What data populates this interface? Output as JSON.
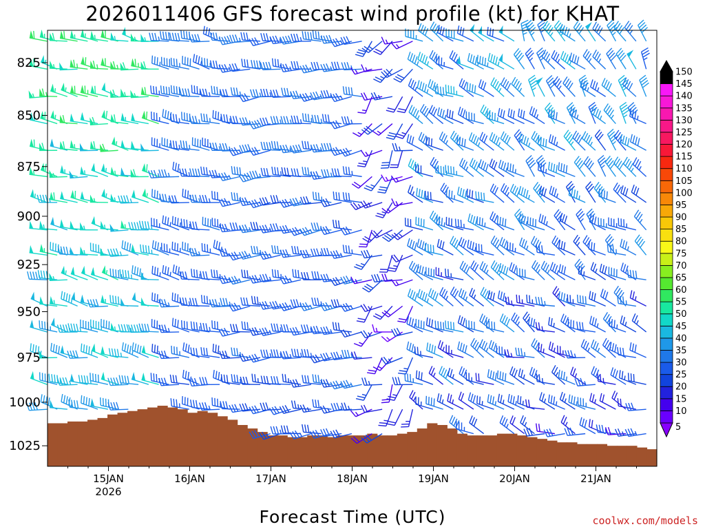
{
  "chart_data": {
    "type": "wind_barb_profile",
    "title": "2026011406 GFS forecast wind profile (kt) for KHAT",
    "xlabel": "Forecast Time (UTC)",
    "ylabel": "",
    "y_axis_labels": [
      "825",
      "850",
      "875",
      "900",
      "925",
      "950",
      "975",
      "1000",
      "1025"
    ],
    "y_range": [
      810,
      1037
    ],
    "x_time_range_hours": [
      0,
      180
    ],
    "x_ticks": [
      {
        "label": "15JAN",
        "hour": 18
      },
      {
        "label": "16JAN",
        "hour": 42
      },
      {
        "label": "17JAN",
        "hour": 66
      },
      {
        "label": "18JAN",
        "hour": 90
      },
      {
        "label": "19JAN",
        "hour": 114
      },
      {
        "label": "20JAN",
        "hour": 138
      },
      {
        "label": "21JAN",
        "hour": 162
      }
    ],
    "x_year_label": "2026",
    "time_step_hours": 3,
    "levels": [
      815,
      828,
      841,
      854,
      867,
      880,
      893,
      907,
      920,
      933,
      947,
      961,
      975,
      990,
      1004,
      1018
    ],
    "colorbar": {
      "labels": [
        "5",
        "10",
        "15",
        "20",
        "25",
        "30",
        "35",
        "40",
        "45",
        "50",
        "55",
        "60",
        "65",
        "70",
        "75",
        "80",
        "85",
        "90",
        "95",
        "100",
        "105",
        "110",
        "115",
        "120",
        "125",
        "130",
        "135",
        "140",
        "145",
        "150"
      ],
      "colors": [
        "#8800ff",
        "#6a00ff",
        "#4400ee",
        "#2222dd",
        "#1144dd",
        "#1a5bea",
        "#1f78e8",
        "#1f98e8",
        "#1ab8e0",
        "#12d8c8",
        "#18e8a0",
        "#30e860",
        "#55e830",
        "#88ee20",
        "#c8f018",
        "#f8f818",
        "#f8e010",
        "#f8c808",
        "#f8a808",
        "#f88808",
        "#f86808",
        "#f84808",
        "#f82810",
        "#f81838",
        "#f81860",
        "#f81888",
        "#f818b0",
        "#f818d8",
        "#f818f8",
        "#000000"
      ],
      "min_color": "#8800ff",
      "max_color": "#000000"
    },
    "terrain_color": "#a0522d",
    "terrain_surface_pressure": [
      1012,
      1012,
      1011,
      1011,
      1010,
      1009,
      1007,
      1006,
      1005,
      1004,
      1003,
      1002,
      1003,
      1004,
      1006,
      1005,
      1006,
      1008,
      1010,
      1013,
      1015,
      1017,
      1019,
      1019,
      1020,
      1020,
      1019,
      1019,
      1020,
      1019,
      1019,
      1019,
      1018,
      1019,
      1019,
      1018,
      1017,
      1015,
      1012,
      1013,
      1015,
      1018,
      1019,
      1019,
      1019,
      1018,
      1018,
      1019,
      1020,
      1021,
      1022,
      1023,
      1023,
      1024,
      1024,
      1024,
      1025,
      1025,
      1025,
      1026,
      1027
    ],
    "wind_segments": [
      {
        "hour_start": 0,
        "hour_end": 36,
        "speed_low": 30,
        "speed_high": 50,
        "upper_bias": 15
      },
      {
        "hour_start": 36,
        "hour_end": 57,
        "speed_low": 25,
        "speed_high": 35,
        "upper_bias": 5
      },
      {
        "hour_start": 57,
        "hour_end": 96,
        "speed_low": 20,
        "speed_high": 35,
        "upper_bias": 5
      },
      {
        "hour_start": 96,
        "hour_end": 111,
        "speed_low": 5,
        "speed_high": 30,
        "upper_bias": 0
      },
      {
        "hour_start": 111,
        "hour_end": 141,
        "speed_low": 10,
        "speed_high": 40,
        "upper_bias": 10
      },
      {
        "hour_start": 141,
        "hour_end": 180,
        "speed_low": 10,
        "speed_high": 35,
        "upper_bias": 15
      }
    ]
  },
  "credit": "coolwx.com/models"
}
